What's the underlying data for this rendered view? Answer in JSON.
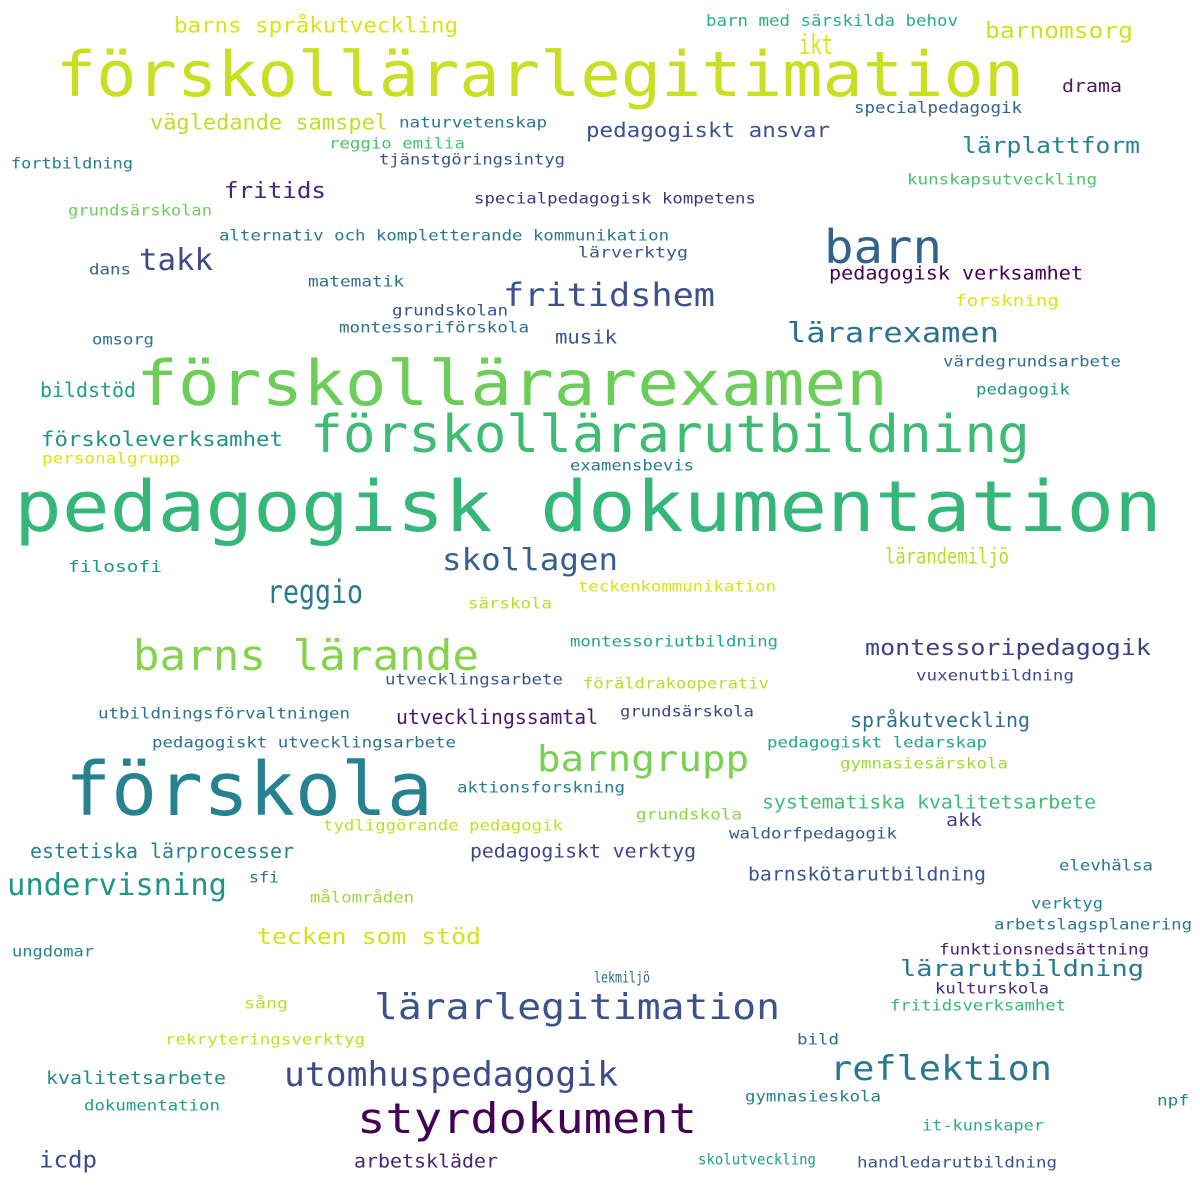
{
  "words": [
    {
      "text": "förskollärarlegitimation",
      "color": "#c8df22"
    },
    {
      "text": "förskollärarexamen",
      "color": "#6cce59"
    },
    {
      "text": "pedagogisk dokumentation",
      "color": "#35b779"
    },
    {
      "text": "förskollärarutbildning",
      "color": "#3fbc73"
    },
    {
      "text": "förskola",
      "color": "#26828e"
    },
    {
      "text": "barn",
      "color": "#33638d"
    },
    {
      "text": "barns lärande",
      "color": "#84d44b"
    },
    {
      "text": "styrdokument",
      "color": "#440154"
    },
    {
      "text": "lärarlegitimation",
      "color": "#3b528b"
    },
    {
      "text": "barngrupp",
      "color": "#7ad151"
    },
    {
      "text": "utomhuspedagogik",
      "color": "#3e4989"
    },
    {
      "text": "reflektion",
      "color": "#2a788e"
    },
    {
      "text": "undervisning",
      "color": "#1f968b"
    },
    {
      "text": "fritidshem",
      "color": "#3b528b"
    },
    {
      "text": "reggio",
      "color": "#287c8e"
    },
    {
      "text": "skollagen",
      "color": "#355f8d"
    },
    {
      "text": "lärarexamen",
      "color": "#2c728e"
    },
    {
      "text": "takk",
      "color": "#3e4989"
    },
    {
      "text": "ikt",
      "color": "#dde318"
    },
    {
      "text": "montessoripedagogik",
      "color": "#433e85"
    },
    {
      "text": "tecken som stöd",
      "color": "#d2e21b"
    },
    {
      "text": "lärarutbildning",
      "color": "#2a788e"
    },
    {
      "text": "barns språkutveckling",
      "color": "#dce319"
    },
    {
      "text": "barnomsorg",
      "color": "#d0e11c"
    },
    {
      "text": "vägledande samspel",
      "color": "#c0df25"
    },
    {
      "text": "pedagogiskt ansvar",
      "color": "#3b528b"
    },
    {
      "text": "lärplattform",
      "color": "#25848e"
    },
    {
      "text": "fritids",
      "color": "#482677"
    },
    {
      "text": "pedagogisk verksamhet",
      "color": "#440154"
    },
    {
      "text": "lärandemiljö",
      "color": "#b5de2b"
    },
    {
      "text": "utvecklingssamtal",
      "color": "#481a6c"
    },
    {
      "text": "språkutveckling",
      "color": "#2d708e"
    },
    {
      "text": "systematiska kvalitetsarbete",
      "color": "#3dbc74"
    },
    {
      "text": "estetiska lärprocesser",
      "color": "#26828e"
    },
    {
      "text": "förskoleverksamhet",
      "color": "#21918c"
    },
    {
      "text": "pedagogiskt verktyg",
      "color": "#414487"
    },
    {
      "text": "barnskötarutbildning",
      "color": "#39568c"
    },
    {
      "text": "icdp",
      "color": "#3e4a89"
    },
    {
      "text": "arbetskläder",
      "color": "#482475"
    },
    {
      "text": "kvalitetsarbete",
      "color": "#238a8d"
    },
    {
      "text": "bildstöd",
      "color": "#1f9e89"
    },
    {
      "text": "musik",
      "color": "#3b528b"
    },
    {
      "text": "drama",
      "color": "#481b6d"
    },
    {
      "text": "akk",
      "color": "#414487"
    },
    {
      "text": "barn med särskilda behov",
      "color": "#2ab07f"
    },
    {
      "text": "specialpedagogik",
      "color": "#33638d"
    },
    {
      "text": "naturvetenskap",
      "color": "#2a788e"
    },
    {
      "text": "reggio emilia",
      "color": "#4ac16d"
    },
    {
      "text": "tjänstgöringsintyg",
      "color": "#3b528b"
    },
    {
      "text": "fortbildning",
      "color": "#287d8e"
    },
    {
      "text": "kunskapsutveckling",
      "color": "#4ec36b"
    },
    {
      "text": "specialpedagogisk kompetens",
      "color": "#46337e"
    },
    {
      "text": "grundsärskolan",
      "color": "#6ccd5a"
    },
    {
      "text": "alternativ och kompletterande kommunikation",
      "color": "#2a788e"
    },
    {
      "text": "lärverktyg",
      "color": "#38588c"
    },
    {
      "text": "dans",
      "color": "#33638d"
    },
    {
      "text": "matematik",
      "color": "#2c728e"
    },
    {
      "text": "forskning",
      "color": "#dce319"
    },
    {
      "text": "grundskolan",
      "color": "#3b528b"
    },
    {
      "text": "montessoriförskola",
      "color": "#2d708e"
    },
    {
      "text": "omsorg",
      "color": "#2c728e"
    },
    {
      "text": "värdegrundsarbete",
      "color": "#2c728e"
    },
    {
      "text": "pedagogik",
      "color": "#21918c"
    },
    {
      "text": "personalgrupp",
      "color": "#dde318"
    },
    {
      "text": "examensbevis",
      "color": "#2a788e"
    },
    {
      "text": "filosofi",
      "color": "#1f968b"
    },
    {
      "text": "teckenkommunikation",
      "color": "#d8e219"
    },
    {
      "text": "särskola",
      "color": "#b8de29"
    },
    {
      "text": "montessoriutbildning",
      "color": "#22a785"
    },
    {
      "text": "utvecklingsarbete",
      "color": "#3b528b"
    },
    {
      "text": "föräldrakooperativ",
      "color": "#b5de2b"
    },
    {
      "text": "vuxenutbildning",
      "color": "#3e4989"
    },
    {
      "text": "utbildningsförvaltningen",
      "color": "#2c728e"
    },
    {
      "text": "grundsärskola",
      "color": "#404688"
    },
    {
      "text": "pedagogiskt utvecklingsarbete",
      "color": "#2c728e"
    },
    {
      "text": "pedagogiskt ledarskap",
      "color": "#22a785"
    },
    {
      "text": "gymnasiesärskola",
      "color": "#a0da39"
    },
    {
      "text": "aktionsforskning",
      "color": "#287d8e"
    },
    {
      "text": "grundskola",
      "color": "#8bd646"
    },
    {
      "text": "tydliggörande pedagogik",
      "color": "#c2df23"
    },
    {
      "text": "waldorfpedagogik",
      "color": "#38598c"
    },
    {
      "text": "sfi",
      "color": "#2c728e"
    },
    {
      "text": "målområden",
      "color": "#9bd93c"
    },
    {
      "text": "elevhälsa",
      "color": "#2a788e"
    },
    {
      "text": "verktyg",
      "color": "#25848e"
    },
    {
      "text": "arbetslagsplanering",
      "color": "#2a788e"
    },
    {
      "text": "ungdomar",
      "color": "#26828e"
    },
    {
      "text": "funktionsnedsättning",
      "color": "#482173"
    },
    {
      "text": "lekmiljö",
      "color": "#31688e"
    },
    {
      "text": "kulturskola",
      "color": "#482878"
    },
    {
      "text": "sång",
      "color": "#b5de2b"
    },
    {
      "text": "fritidsverksamhet",
      "color": "#35b779"
    },
    {
      "text": "rekryteringsverktyg",
      "color": "#c2df23"
    },
    {
      "text": "bild",
      "color": "#31688e"
    },
    {
      "text": "dokumentation",
      "color": "#1f9e89"
    },
    {
      "text": "gymnasieskola",
      "color": "#277f8e"
    },
    {
      "text": "npf",
      "color": "#26828e"
    },
    {
      "text": "it-kunskaper",
      "color": "#2ab07f"
    },
    {
      "text": "skolutveckling",
      "color": "#1f9e89"
    },
    {
      "text": "handledarutbildning",
      "color": "#3b528b"
    }
  ]
}
